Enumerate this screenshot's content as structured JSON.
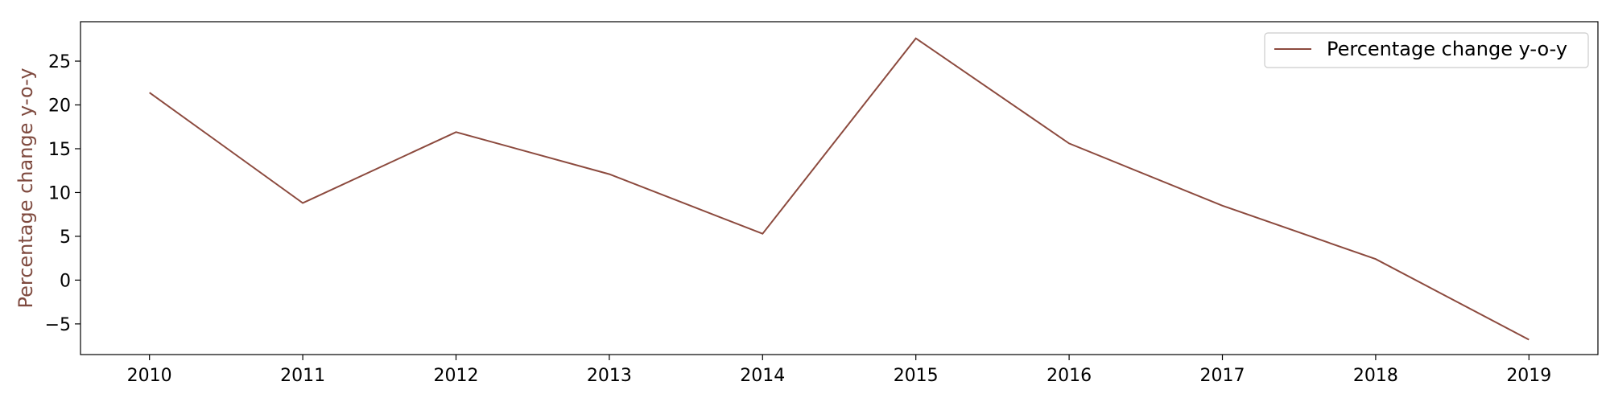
{
  "chart_data": {
    "type": "line",
    "title": "",
    "xlabel": "",
    "ylabel": "Percentage change y-o-y",
    "ylabel_color": "#7f4a3f",
    "x": [
      2010,
      2011,
      2012,
      2013,
      2014,
      2015,
      2016,
      2017,
      2018,
      2019
    ],
    "x_tick_labels": [
      "2010",
      "2011",
      "2012",
      "2013",
      "2014",
      "2015",
      "2016",
      "2017",
      "2018",
      "2019"
    ],
    "xlim": [
      2009.55,
      2019.45
    ],
    "ylim": [
      -8.5,
      29.5
    ],
    "y_ticks": [
      -5,
      0,
      5,
      10,
      15,
      20,
      25
    ],
    "y_tick_labels": [
      "−5",
      "0",
      "5",
      "10",
      "15",
      "20",
      "25"
    ],
    "grid": false,
    "legend": {
      "position": "top-right"
    },
    "series": [
      {
        "name": "Percentage change y-o-y",
        "color": "#8c4a3e",
        "values": [
          21.4,
          8.8,
          16.9,
          12.1,
          5.3,
          27.6,
          15.6,
          8.5,
          2.4,
          -6.8
        ]
      }
    ]
  }
}
